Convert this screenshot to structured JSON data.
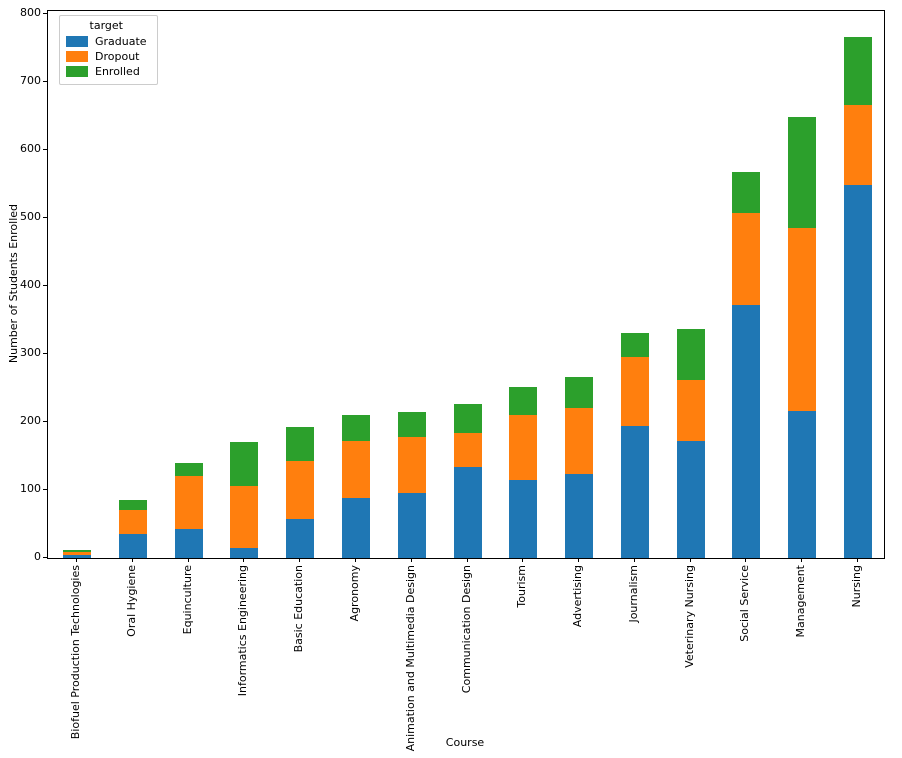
{
  "figure": {
    "background": "#ffffff",
    "xlabel": "Course",
    "ylabel": "Number of Students Enrolled"
  },
  "legend": {
    "title": "target",
    "entries": [
      {
        "label": "Graduate",
        "color": "#1f77b4"
      },
      {
        "label": "Dropout",
        "color": "#ff7f0e"
      },
      {
        "label": "Enrolled",
        "color": "#2ca02c"
      }
    ]
  },
  "chart_data": {
    "type": "bar",
    "stacked": true,
    "title": "",
    "xlabel": "Course",
    "ylabel": "Number of Students Enrolled",
    "ylim": [
      0,
      800
    ],
    "yticks": [
      0,
      100,
      200,
      300,
      400,
      500,
      600,
      700,
      800
    ],
    "grid": false,
    "legend_title": "target",
    "legend_position": "upper left",
    "categories": [
      "Biofuel Production Technologies",
      "Oral Hygiene",
      "Equinculture",
      "Informatics Engineering",
      "Basic Education",
      "Agronomy",
      "Animation and Multimedia Design",
      "Communication Design",
      "Tourism",
      "Advertising",
      "Journalism",
      "Veterinary Nursing",
      "Social Service",
      "Management",
      "Nursing"
    ],
    "series": [
      {
        "name": "Graduate",
        "color": "#1f77b4",
        "values": [
          4,
          36,
          43,
          14,
          57,
          88,
          96,
          134,
          115,
          124,
          194,
          172,
          372,
          216,
          548
        ]
      },
      {
        "name": "Dropout",
        "color": "#ff7f0e",
        "values": [
          5,
          35,
          77,
          92,
          85,
          84,
          82,
          50,
          96,
          96,
          101,
          90,
          135,
          269,
          118
        ]
      },
      {
        "name": "Enrolled",
        "color": "#2ca02c",
        "values": [
          3,
          15,
          20,
          64,
          50,
          38,
          37,
          42,
          41,
          46,
          36,
          75,
          61,
          163,
          100
        ]
      }
    ]
  }
}
